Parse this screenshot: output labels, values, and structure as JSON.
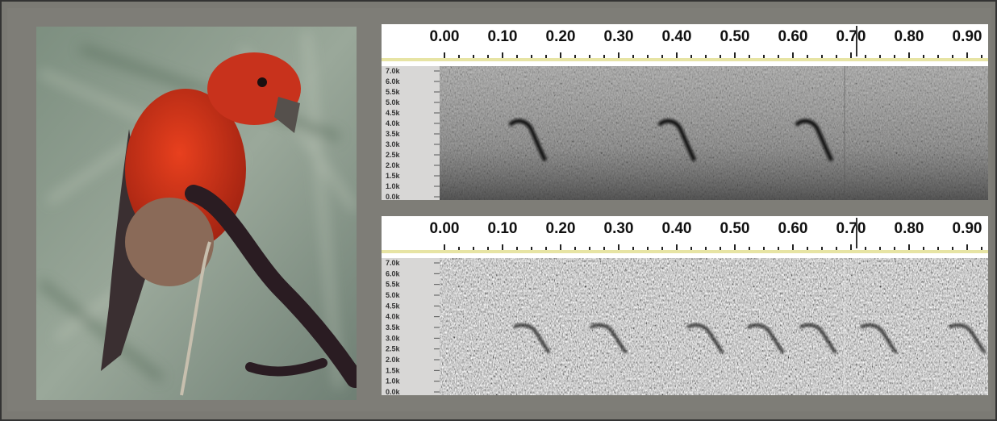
{
  "panels": [
    {
      "time_ticks": [
        "0.00",
        "0.10",
        "0.20",
        "0.30",
        "0.40",
        "0.50",
        "0.60",
        "0.70",
        "0.80",
        "0.90"
      ],
      "freq_labels": [
        "7.0k",
        "6.0k",
        "5.5k",
        "5.0k",
        "4.5k",
        "4.0k",
        "3.5k",
        "3.0k",
        "2.5k",
        "2.0k",
        "1.5k",
        "1.0k",
        "0.0k"
      ]
    },
    {
      "time_ticks": [
        "0.00",
        "0.10",
        "0.20",
        "0.30",
        "0.40",
        "0.50",
        "0.60",
        "0.70",
        "0.80",
        "0.90"
      ],
      "freq_labels": [
        "7.0k",
        "6.0k",
        "5.5k",
        "5.0k",
        "4.5k",
        "4.0k",
        "3.5k",
        "3.0k",
        "2.5k",
        "2.0k",
        "1.5k",
        "1.0k",
        "0.0k"
      ]
    }
  ]
}
